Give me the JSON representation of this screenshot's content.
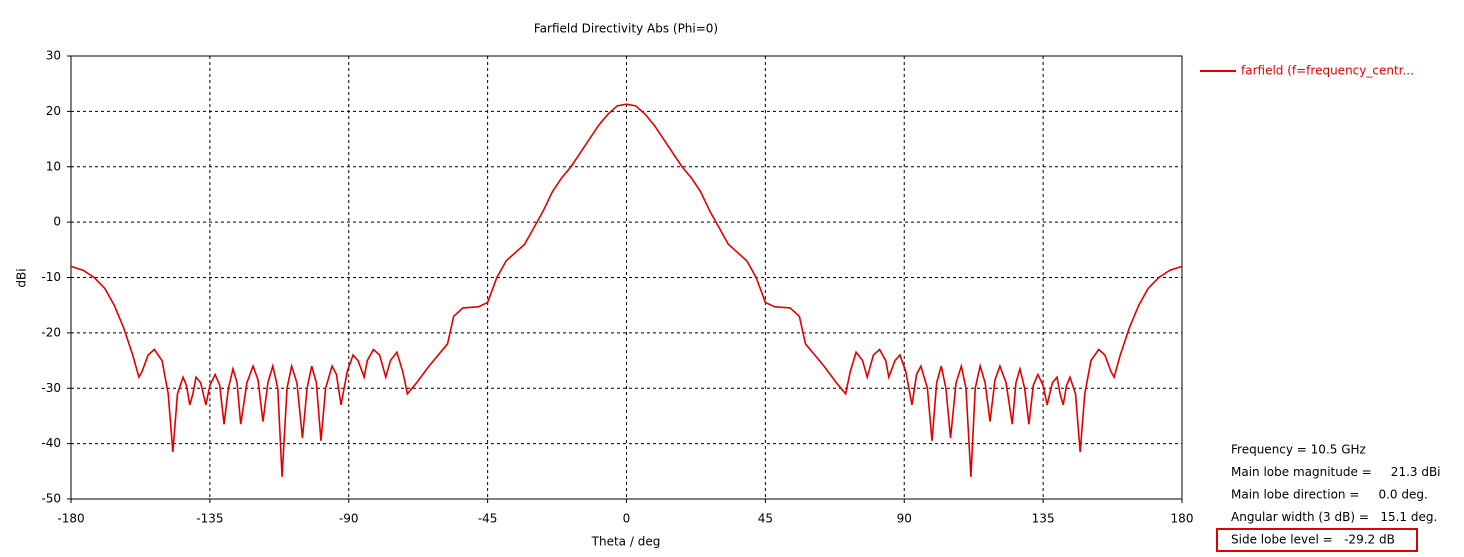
{
  "chart_data": {
    "type": "line",
    "title": "Farfield Directivity Abs (Phi=0)",
    "xlabel": "Theta / deg",
    "ylabel": "dBi",
    "x": [
      -180,
      -176,
      -172.5,
      -169,
      -166,
      -163,
      -160,
      -158,
      -157,
      -155,
      -153,
      -150.5,
      -148.5,
      -147,
      -145.5,
      -143.7,
      -142.6,
      -141.5,
      -140.5,
      -139.5,
      -138,
      -136.3,
      -135,
      -133.3,
      -131.8,
      -130.4,
      -129,
      -127.5,
      -126.2,
      -125,
      -123,
      -121,
      -119.4,
      -117.8,
      -116.2,
      -114.6,
      -113,
      -111.6,
      -110,
      -108.5,
      -106.8,
      -105,
      -103.5,
      -102,
      -100.5,
      -99,
      -97.5,
      -95.4,
      -94,
      -92.5,
      -90.5,
      -88.6,
      -87,
      -85,
      -84,
      -82,
      -80,
      -78,
      -76.5,
      -74.4,
      -72.5,
      -71,
      -68,
      -64,
      -61,
      -58,
      -56,
      -53,
      -48,
      -45,
      -42,
      -39,
      -36,
      -33,
      -30,
      -27,
      -24,
      -21,
      -18,
      -15,
      -12,
      -9,
      -6,
      -3,
      0,
      3,
      6,
      9,
      12,
      15,
      18,
      21,
      24,
      27,
      30,
      33,
      36,
      39,
      42,
      45,
      48,
      53,
      56,
      58,
      61,
      64,
      68,
      71,
      72.5,
      74.4,
      76.5,
      78,
      80,
      82,
      84,
      85,
      87,
      88.6,
      90.5,
      92.5,
      94,
      95.4,
      97.5,
      99,
      100.5,
      102,
      103.5,
      105,
      106.8,
      108.5,
      110,
      111.6,
      113,
      114.6,
      116.2,
      117.8,
      119.4,
      121,
      123,
      125,
      126.2,
      127.5,
      129,
      130.4,
      131.8,
      133.3,
      135,
      136.3,
      138,
      139.5,
      140.5,
      141.5,
      142.6,
      143.7,
      145.5,
      147,
      148.5,
      150.5,
      153,
      155,
      157,
      158,
      160,
      163,
      166,
      169,
      172.5,
      176,
      180
    ],
    "series": [
      {
        "name": "farfield (f=frequency_centr...",
        "color": "#e00000",
        "values": [
          -8,
          -8.7,
          -10,
          -12,
          -15,
          -19,
          -24,
          -28,
          -27,
          -24,
          -23,
          -25,
          -31,
          -41.5,
          -31,
          -28,
          -29.5,
          -33,
          -31,
          -28,
          -29,
          -33,
          -29.5,
          -27.5,
          -29.5,
          -36.5,
          -30,
          -26.5,
          -29,
          -36.5,
          -29,
          -26,
          -28.5,
          -36,
          -29,
          -26,
          -30,
          -46,
          -30,
          -26,
          -29,
          -39,
          -30,
          -26,
          -29,
          -39.5,
          -30,
          -26,
          -27.5,
          -33,
          -27,
          -24,
          -25,
          -28,
          -25,
          -23,
          -24,
          -28,
          -25,
          -23.5,
          -27,
          -31,
          -29,
          -26,
          -24,
          -22,
          -17,
          -15.5,
          -15.3,
          -14.5,
          -10,
          -7,
          -5.5,
          -4,
          -1,
          2,
          5.5,
          8,
          10,
          12.5,
          15,
          17.5,
          19.5,
          21,
          21.3,
          21,
          19.5,
          17.5,
          15,
          12.5,
          10,
          8,
          5.5,
          2,
          -1,
          -4,
          -5.5,
          -7,
          -10,
          -14.5,
          -15.3,
          -15.5,
          -17,
          -22,
          -24,
          -26,
          -29,
          -31,
          -27,
          -23.5,
          -25,
          -28,
          -24,
          -23,
          -25,
          -28,
          -25,
          -24,
          -27,
          -33,
          -27.5,
          -26,
          -30,
          -39.5,
          -29,
          -26,
          -30,
          -39,
          -29,
          -26,
          -30,
          -46,
          -30,
          -26,
          -29,
          -36,
          -28.5,
          -26,
          -29,
          -36.5,
          -29,
          -26.5,
          -30,
          -36.5,
          -29.5,
          -27.5,
          -29.5,
          -33,
          -29,
          -28,
          -31,
          -33,
          -29.5,
          -28,
          -31,
          -41.5,
          -31,
          -25,
          -23,
          -24,
          -27,
          -28,
          -24,
          -19,
          -15,
          -12,
          -10,
          -8.7,
          -8
        ]
      }
    ],
    "xlim": [
      -180,
      180
    ],
    "xticks": [
      -180,
      -135,
      -90,
      -45,
      0,
      45,
      90,
      135,
      180
    ],
    "ylim": [
      -50,
      30
    ],
    "yticks": [
      -50,
      -40,
      -30,
      -20,
      -10,
      0,
      10,
      20,
      30
    ],
    "grid": true,
    "legend": "right",
    "annotations": [
      "Frequency = 10.5 GHz",
      "Main lobe magnitude =     21.3 dBi",
      "Main lobe direction =     0.0 deg.",
      "Angular width (3 dB) =   15.1 deg.",
      "Side lobe level =   -29.2 dB"
    ]
  }
}
